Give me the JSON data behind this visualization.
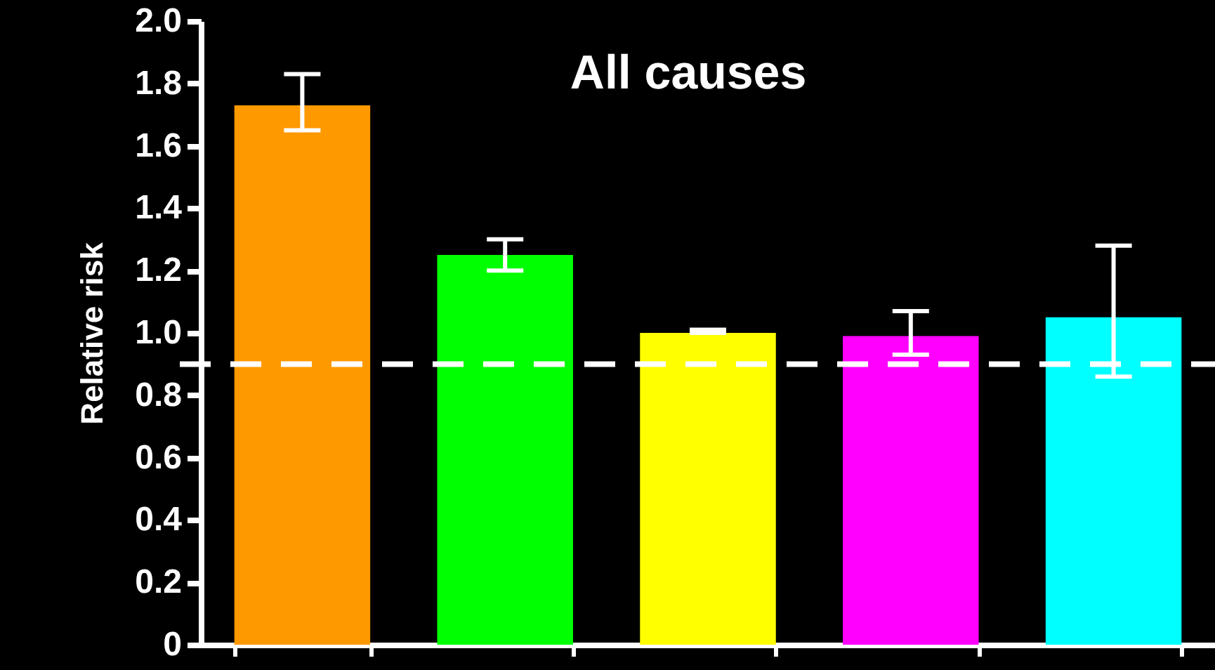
{
  "chart_data": {
    "type": "bar",
    "title": "All causes",
    "ylabel": "Relative risk",
    "categories": [
      null,
      null,
      null,
      null,
      null
    ],
    "values": [
      1.73,
      1.25,
      1.0,
      0.99,
      1.05
    ],
    "colors": [
      "#ff9900",
      "#00ff00",
      "#ffff00",
      "#ff00ff",
      "#00ffff"
    ],
    "errors": [
      [
        1.65,
        1.83
      ],
      [
        1.2,
        1.3
      ],
      [
        1.0,
        1.01
      ],
      [
        0.93,
        1.07
      ],
      [
        0.86,
        1.28
      ]
    ],
    "ylim": [
      0,
      2.0
    ],
    "yticks": [
      {
        "value": 0,
        "label": "0"
      },
      {
        "value": 0.2,
        "label": "0.2"
      },
      {
        "value": 0.4,
        "label": "0.4"
      },
      {
        "value": 0.6,
        "label": "0.6"
      },
      {
        "value": 0.8,
        "label": "0.8"
      },
      {
        "value": 1.0,
        "label": "1.0"
      },
      {
        "value": 1.2,
        "label": "1.2"
      },
      {
        "value": 1.4,
        "label": "1.4"
      },
      {
        "value": 1.6,
        "label": "1.6"
      },
      {
        "value": 1.8,
        "label": "1.8"
      },
      {
        "value": 2.0,
        "label": "2.0"
      }
    ],
    "ref_lines": [
      {
        "axis": "y",
        "value": 0.9,
        "color": "#ffffff",
        "line_style": "dashed"
      }
    ],
    "grid": false,
    "tick_labels": "y"
  }
}
